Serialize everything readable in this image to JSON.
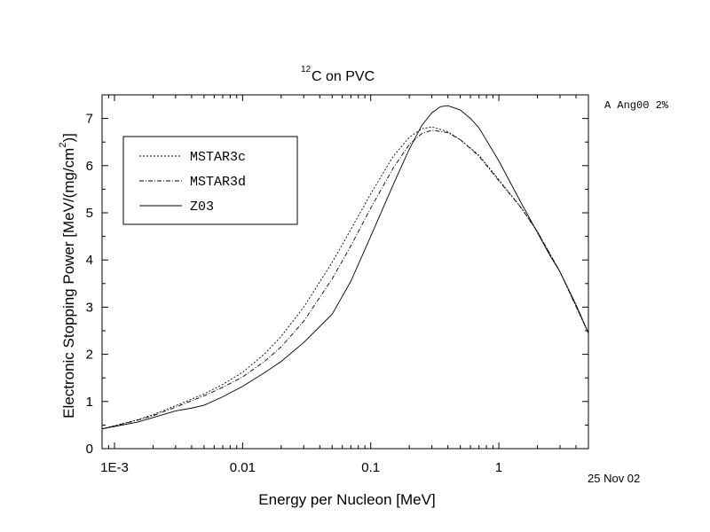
{
  "chart_data": {
    "type": "line",
    "title_sup": "12",
    "title_main": "C on PVC",
    "xlabel": "Energy per Nucleon [MeV]",
    "ylabel_main": "Electronic Stopping Power [MeV/(mg/cm",
    "ylabel_sup": "2",
    "ylabel_close": ")]",
    "x_scale": "log",
    "xlim": [
      0.0008,
      5
    ],
    "ylim": [
      0,
      7.5
    ],
    "x_ticks": [
      {
        "value": 0.001,
        "label": "1E-3"
      },
      {
        "value": 0.01,
        "label": "0.01"
      },
      {
        "value": 0.1,
        "label": "0.1"
      },
      {
        "value": 1,
        "label": "1"
      }
    ],
    "y_ticks": [
      {
        "value": 0,
        "label": "0"
      },
      {
        "value": 1,
        "label": "1"
      },
      {
        "value": 2,
        "label": "2"
      },
      {
        "value": 3,
        "label": "3"
      },
      {
        "value": 4,
        "label": "4"
      },
      {
        "value": 5,
        "label": "5"
      },
      {
        "value": 6,
        "label": "6"
      },
      {
        "value": 7,
        "label": "7"
      }
    ],
    "grid": false,
    "legend_position": "top-left",
    "series": [
      {
        "name": "MSTAR3c",
        "dash": "2,2",
        "x": [
          0.0008,
          0.001,
          0.0015,
          0.002,
          0.003,
          0.005,
          0.007,
          0.01,
          0.015,
          0.02,
          0.03,
          0.05,
          0.07,
          0.1,
          0.15,
          0.2,
          0.25,
          0.3,
          0.4,
          0.5,
          0.7,
          1,
          1.5,
          2,
          3,
          5
        ],
        "y": [
          0.42,
          0.49,
          0.61,
          0.72,
          0.91,
          1.16,
          1.36,
          1.62,
          2.02,
          2.38,
          3.0,
          3.95,
          4.65,
          5.4,
          6.2,
          6.6,
          6.78,
          6.82,
          6.72,
          6.55,
          6.22,
          5.7,
          5.1,
          4.6,
          3.75,
          2.45
        ]
      },
      {
        "name": "MSTAR3d",
        "dash": "5,2,1,2",
        "x": [
          0.0008,
          0.001,
          0.0015,
          0.002,
          0.003,
          0.005,
          0.007,
          0.01,
          0.015,
          0.02,
          0.03,
          0.05,
          0.07,
          0.1,
          0.15,
          0.2,
          0.25,
          0.3,
          0.4,
          0.5,
          0.7,
          1,
          1.5,
          2,
          3,
          5
        ],
        "y": [
          0.42,
          0.48,
          0.6,
          0.7,
          0.88,
          1.12,
          1.3,
          1.52,
          1.86,
          2.16,
          2.7,
          3.6,
          4.3,
          5.1,
          5.95,
          6.45,
          6.68,
          6.75,
          6.7,
          6.55,
          6.2,
          5.68,
          5.1,
          4.6,
          3.75,
          2.45
        ]
      },
      {
        "name": "Z03",
        "dash": "",
        "x": [
          0.0008,
          0.001,
          0.0015,
          0.002,
          0.003,
          0.004,
          0.005,
          0.007,
          0.01,
          0.015,
          0.02,
          0.03,
          0.05,
          0.07,
          0.1,
          0.15,
          0.2,
          0.25,
          0.3,
          0.35,
          0.4,
          0.5,
          0.6,
          0.7,
          1,
          1.5,
          2,
          2.5,
          3,
          4,
          5
        ],
        "y": [
          0.42,
          0.47,
          0.56,
          0.66,
          0.8,
          0.86,
          0.92,
          1.1,
          1.32,
          1.62,
          1.85,
          2.25,
          2.85,
          3.55,
          4.5,
          5.6,
          6.35,
          6.85,
          7.12,
          7.25,
          7.27,
          7.18,
          7.0,
          6.8,
          6.1,
          5.2,
          4.58,
          4.1,
          3.75,
          3.05,
          2.45
        ]
      }
    ]
  },
  "annotations": {
    "top_right": "A Ang00 2%",
    "date": "25 Nov 02"
  }
}
